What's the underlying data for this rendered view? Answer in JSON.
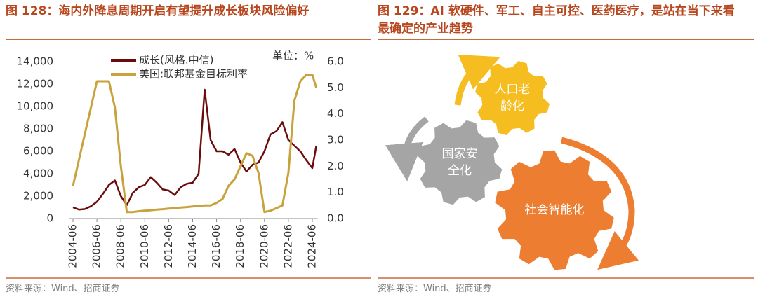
{
  "chart_data": {
    "type": "line",
    "title": "图 128：海内外降息周期开启有望提升成长板块风险偏好",
    "source": "资料来源：Wind、招商证券",
    "annotation": "单位：%",
    "x": [
      "2004-06",
      "2004-12",
      "2005-06",
      "2005-12",
      "2006-06",
      "2006-12",
      "2007-06",
      "2007-12",
      "2008-06",
      "2008-12",
      "2009-06",
      "2009-12",
      "2010-06",
      "2010-12",
      "2011-06",
      "2011-12",
      "2012-06",
      "2012-12",
      "2013-06",
      "2013-12",
      "2014-06",
      "2014-12",
      "2015-06",
      "2015-12",
      "2016-06",
      "2016-12",
      "2017-06",
      "2017-12",
      "2018-06",
      "2018-12",
      "2019-06",
      "2019-12",
      "2020-06",
      "2020-12",
      "2021-06",
      "2021-12",
      "2022-06",
      "2022-12",
      "2023-06",
      "2023-12",
      "2024-06",
      "2024-10"
    ],
    "series": [
      {
        "name": "成长(风格.中信)",
        "color": "#6b0c0c",
        "values": [
          1000,
          800,
          850,
          1100,
          1500,
          2200,
          3000,
          3400,
          2000,
          1200,
          2300,
          2800,
          3000,
          3700,
          3200,
          2600,
          2500,
          2100,
          2800,
          3100,
          3200,
          4000,
          11500,
          7000,
          6000,
          6000,
          5700,
          6200,
          5000,
          4200,
          4800,
          5000,
          6000,
          7500,
          7800,
          8600,
          7000,
          6500,
          6000,
          5200,
          4500,
          6500
        ]
      },
      {
        "name": "美国:联邦基金目标利率",
        "color": "#c8a23c",
        "axis": "y2",
        "values": [
          1.25,
          2.25,
          3.25,
          4.25,
          5.25,
          5.25,
          5.25,
          4.25,
          2.0,
          0.25,
          0.25,
          0.28,
          0.3,
          0.32,
          0.34,
          0.36,
          0.38,
          0.4,
          0.42,
          0.44,
          0.46,
          0.48,
          0.5,
          0.5,
          0.6,
          0.75,
          1.25,
          1.5,
          2.0,
          2.5,
          2.4,
          1.75,
          0.25,
          0.3,
          0.4,
          0.5,
          1.75,
          4.5,
          5.25,
          5.5,
          5.5,
          5.0
        ]
      }
    ],
    "xlim": [
      "2004-06",
      "2024-10"
    ],
    "xticks": [
      "2004-06",
      "2006-06",
      "2008-06",
      "2010-06",
      "2012-06",
      "2014-06",
      "2016-06",
      "2018-06",
      "2020-06",
      "2022-06",
      "2024-06"
    ],
    "ylim": [
      0,
      14000
    ],
    "yticks": [
      0,
      {
        "value": 2000,
        "label": "2,000"
      },
      {
        "value": 4000,
        "label": "4,000"
      },
      {
        "value": 6000,
        "label": "6,000"
      },
      {
        "value": 8000,
        "label": "8,000"
      },
      {
        "value": 10000,
        "label": "10,000"
      },
      {
        "value": 12000,
        "label": "12,000"
      },
      {
        "value": 14000,
        "label": "14,000"
      }
    ],
    "y2lim": [
      0,
      6
    ],
    "y2ticks": [
      {
        "value": 0,
        "label": "0.0"
      },
      {
        "value": 1,
        "label": "1.0"
      },
      {
        "value": 2,
        "label": "2.0"
      },
      {
        "value": 3,
        "label": "3.0"
      },
      {
        "value": 4,
        "label": "4.0"
      },
      {
        "value": 5,
        "label": "5.0"
      },
      {
        "value": 6,
        "label": "6.0"
      }
    ]
  },
  "diagram": {
    "title": "图 129：AI 软硬件、军工、自主可控、医药医疗，是站在当下来看最确定的产业趋势",
    "source": "资料来源：Wind、招商证券",
    "gears": [
      {
        "lines": [
          "人口老",
          "龄化"
        ]
      },
      {
        "lines": [
          "国家安",
          "全化"
        ]
      },
      {
        "lines": [
          "社会智能化"
        ]
      }
    ]
  }
}
